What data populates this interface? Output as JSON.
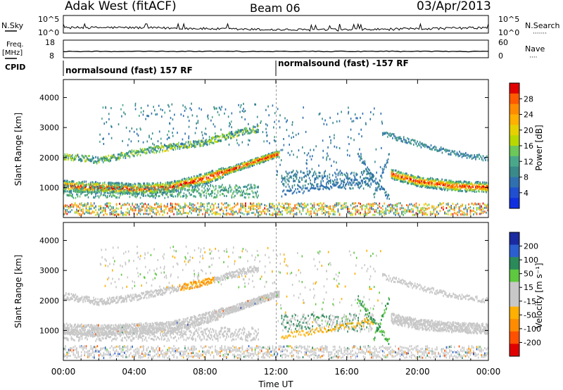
{
  "header": {
    "title": "Adak West (fitACF)",
    "beam": "Beam 06",
    "date": "03/Apr/2013"
  },
  "nsky_panel": {
    "left_label": "N.Sky",
    "right_label": "N.Search",
    "right_dots": "·······",
    "left_ticks": [
      "10^5",
      "10^0"
    ],
    "right_ticks": [
      "10^5",
      "10^0"
    ]
  },
  "freq_panel": {
    "label_line1": "Freq.",
    "label_line2": "[MHz]",
    "left_ticks": [
      "18",
      "8"
    ],
    "right_ticks": [
      "60",
      "0"
    ],
    "right_label": "Nave",
    "right_dots": "····"
  },
  "cpid_panel": {
    "label": "CPID",
    "segments": [
      {
        "text": "normalsound (fast) 157 RF",
        "start_hour": 0
      },
      {
        "text": "normalsound (fast) -157 RF",
        "start_hour": 12
      }
    ]
  },
  "colorbars": {
    "power": {
      "label": "Power [dB]",
      "ticks": [
        "28",
        "24",
        "20",
        "16",
        "12",
        "8",
        "4"
      ],
      "colors": [
        "#e00000",
        "#ff5a00",
        "#ff8c00",
        "#ffb000",
        "#e6d000",
        "#b8d800",
        "#6cc85a",
        "#4aa88a",
        "#3a8a8a",
        "#3070b0",
        "#2050d0",
        "#1030e0"
      ]
    },
    "velocity": {
      "label": "Velocity [m s⁻¹]",
      "ticks": [
        "200",
        "100",
        "50",
        "15",
        "-15",
        "-50",
        "-100",
        "-200"
      ],
      "colors": [
        "#1a2aa0",
        "#2b5fd0",
        "#2a8a5a",
        "#5ec840",
        "#c8c8c8",
        "#c8c8c8",
        "#ffb000",
        "#ff8c00",
        "#ff5000",
        "#e00000"
      ]
    }
  },
  "chart_data": [
    {
      "type": "heatmap",
      "name": "power",
      "ylabel": "Slant Range [km]",
      "yticks": [
        "4000",
        "3000",
        "2000",
        "1000"
      ],
      "ylim": [
        0,
        4600
      ],
      "xlim": [
        0,
        24
      ],
      "features": [
        {
          "desc": "main band",
          "x": [
            0,
            2,
            4,
            6,
            8,
            10,
            12
          ],
          "y": [
            1050,
            1000,
            950,
            1000,
            1300,
            1700,
            2100
          ],
          "value": 24
        },
        {
          "desc": "upper band",
          "x": [
            0,
            2,
            4,
            6,
            8,
            10,
            11
          ],
          "y": [
            2050,
            1900,
            2150,
            2350,
            2500,
            2850,
            2950
          ],
          "value": 12
        },
        {
          "desc": "evening main band",
          "x": [
            18.5,
            20,
            22,
            24
          ],
          "y": [
            1450,
            1200,
            1050,
            1000
          ],
          "value": 22
        },
        {
          "desc": "evening upper band",
          "x": [
            18,
            20,
            22,
            24
          ],
          "y": [
            2800,
            2450,
            2150,
            1950
          ],
          "value": 8
        }
      ]
    },
    {
      "type": "heatmap",
      "name": "velocity",
      "ylabel": "Slant Range [km]",
      "yticks": [
        "4000",
        "3000",
        "2000",
        "1000"
      ],
      "ylim": [
        0,
        4600
      ],
      "xlim": [
        0,
        24
      ],
      "features": [
        {
          "desc": "main band",
          "x": [
            0,
            2,
            4,
            6,
            8,
            10,
            12
          ],
          "y": [
            1050,
            1000,
            1050,
            1100,
            1400,
            1800,
            2200
          ],
          "value": 0
        },
        {
          "desc": "upper band",
          "x": [
            0,
            2,
            4,
            6,
            8,
            10,
            11
          ],
          "y": [
            2150,
            1950,
            2100,
            2350,
            2600,
            2950,
            3050
          ],
          "value": -30
        },
        {
          "desc": "evening main band",
          "x": [
            18.5,
            20,
            22,
            24
          ],
          "y": [
            1400,
            1200,
            1100,
            1050
          ],
          "value": 0
        }
      ]
    }
  ],
  "xaxis": {
    "ticks": [
      "00:00",
      "04:00",
      "08:00",
      "12:00",
      "16:00",
      "20:00",
      "00:00"
    ],
    "label": "Time UT"
  }
}
